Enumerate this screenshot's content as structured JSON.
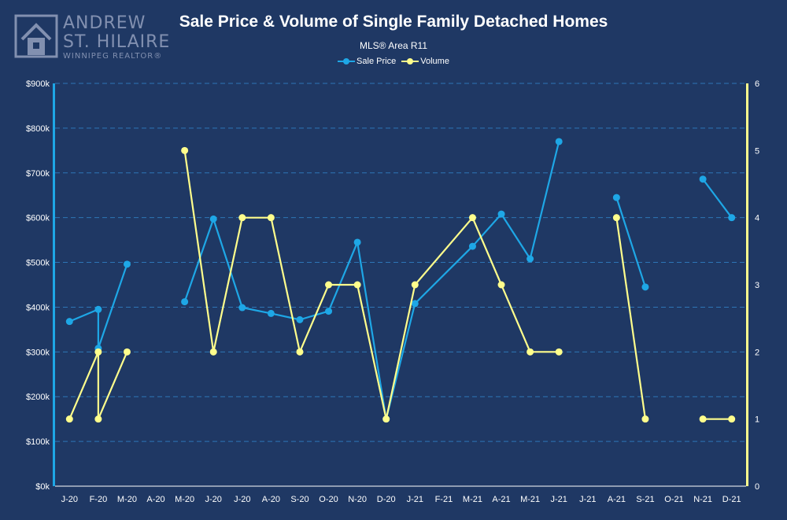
{
  "logo": {
    "line1": "ANDREW",
    "line2": "ST. HILAIRE",
    "line3": "WINNIPEG REALTOR®",
    "icon": "house-icon"
  },
  "colors": {
    "background": "#1f3864",
    "sale_price": "#1ea7e6",
    "volume": "#fffe8c",
    "grid": "#2e75b6",
    "text": "#ffffff"
  },
  "chart_data": {
    "type": "line",
    "title": "Sale Price & Volume of Single Family Detached Homes",
    "subtitle": "MLS® Area R11",
    "legend_position": "top-center",
    "grid": true,
    "x": [
      "J-20",
      "F-20",
      "M-20",
      "A-20",
      "M-20",
      "J-20",
      "J-20",
      "A-20",
      "S-20",
      "O-20",
      "N-20",
      "D-20",
      "J-21",
      "F-21",
      "M-21",
      "A-21",
      "M-21",
      "J-21",
      "J-21",
      "A-21",
      "S-21",
      "O-21",
      "N-21",
      "D-21"
    ],
    "y_left": {
      "ylim": [
        0,
        900000
      ],
      "ticks": [
        0,
        100000,
        200000,
        300000,
        400000,
        500000,
        600000,
        700000,
        800000,
        900000
      ],
      "tick_labels": [
        "$0k",
        "$100k",
        "$200k",
        "$300k",
        "$400k",
        "$500k",
        "$600k",
        "$700k",
        "$800k",
        "$900k"
      ]
    },
    "y_right": {
      "ylim": [
        0,
        6
      ],
      "ticks": [
        0,
        1,
        2,
        3,
        4,
        5,
        6
      ],
      "tick_labels": [
        "0",
        "1",
        "2",
        "3",
        "4",
        "5",
        "6"
      ]
    },
    "series": [
      {
        "name": "Sale Price",
        "axis": "left",
        "color": "#1ea7e6",
        "points": [
          {
            "x": 0,
            "y": 368000
          },
          {
            "x": 1,
            "y": 395000
          },
          {
            "x": 1,
            "y": 308000
          },
          {
            "x": 2,
            "y": 496000
          },
          {
            "x": null,
            "y": null
          },
          {
            "x": 4,
            "y": 412000
          },
          {
            "x": 5,
            "y": 597000
          },
          {
            "x": 6,
            "y": 399000
          },
          {
            "x": 7,
            "y": 386000
          },
          {
            "x": 8,
            "y": 372000
          },
          {
            "x": 9,
            "y": 391000
          },
          {
            "x": 10,
            "y": 545000
          },
          {
            "x": 11,
            "y": 150000
          },
          {
            "x": 12,
            "y": 408000
          },
          {
            "x": 14,
            "y": 536000
          },
          {
            "x": 15,
            "y": 608000
          },
          {
            "x": 16,
            "y": 508000
          },
          {
            "x": 17,
            "y": 770000
          },
          {
            "x": null,
            "y": null
          },
          {
            "x": 19,
            "y": 645000
          },
          {
            "x": 20,
            "y": 445000
          },
          {
            "x": null,
            "y": null
          },
          {
            "x": 22,
            "y": 686000
          },
          {
            "x": 23,
            "y": 600000
          }
        ]
      },
      {
        "name": "Volume",
        "axis": "right",
        "color": "#fffe8c",
        "points": [
          {
            "x": 0,
            "y": 1
          },
          {
            "x": 1,
            "y": 2
          },
          {
            "x": 1,
            "y": 1
          },
          {
            "x": 2,
            "y": 2
          },
          {
            "x": null,
            "y": null
          },
          {
            "x": 4,
            "y": 5
          },
          {
            "x": 5,
            "y": 2
          },
          {
            "x": 6,
            "y": 4
          },
          {
            "x": 7,
            "y": 4
          },
          {
            "x": 8,
            "y": 2
          },
          {
            "x": 9,
            "y": 3
          },
          {
            "x": 10,
            "y": 3
          },
          {
            "x": 11,
            "y": 1
          },
          {
            "x": 12,
            "y": 3
          },
          {
            "x": 14,
            "y": 4
          },
          {
            "x": 15,
            "y": 3
          },
          {
            "x": 16,
            "y": 2
          },
          {
            "x": 17,
            "y": 2
          },
          {
            "x": null,
            "y": null
          },
          {
            "x": 19,
            "y": 4
          },
          {
            "x": 20,
            "y": 1
          },
          {
            "x": null,
            "y": null
          },
          {
            "x": 22,
            "y": 1
          },
          {
            "x": 23,
            "y": 1
          }
        ]
      }
    ]
  }
}
